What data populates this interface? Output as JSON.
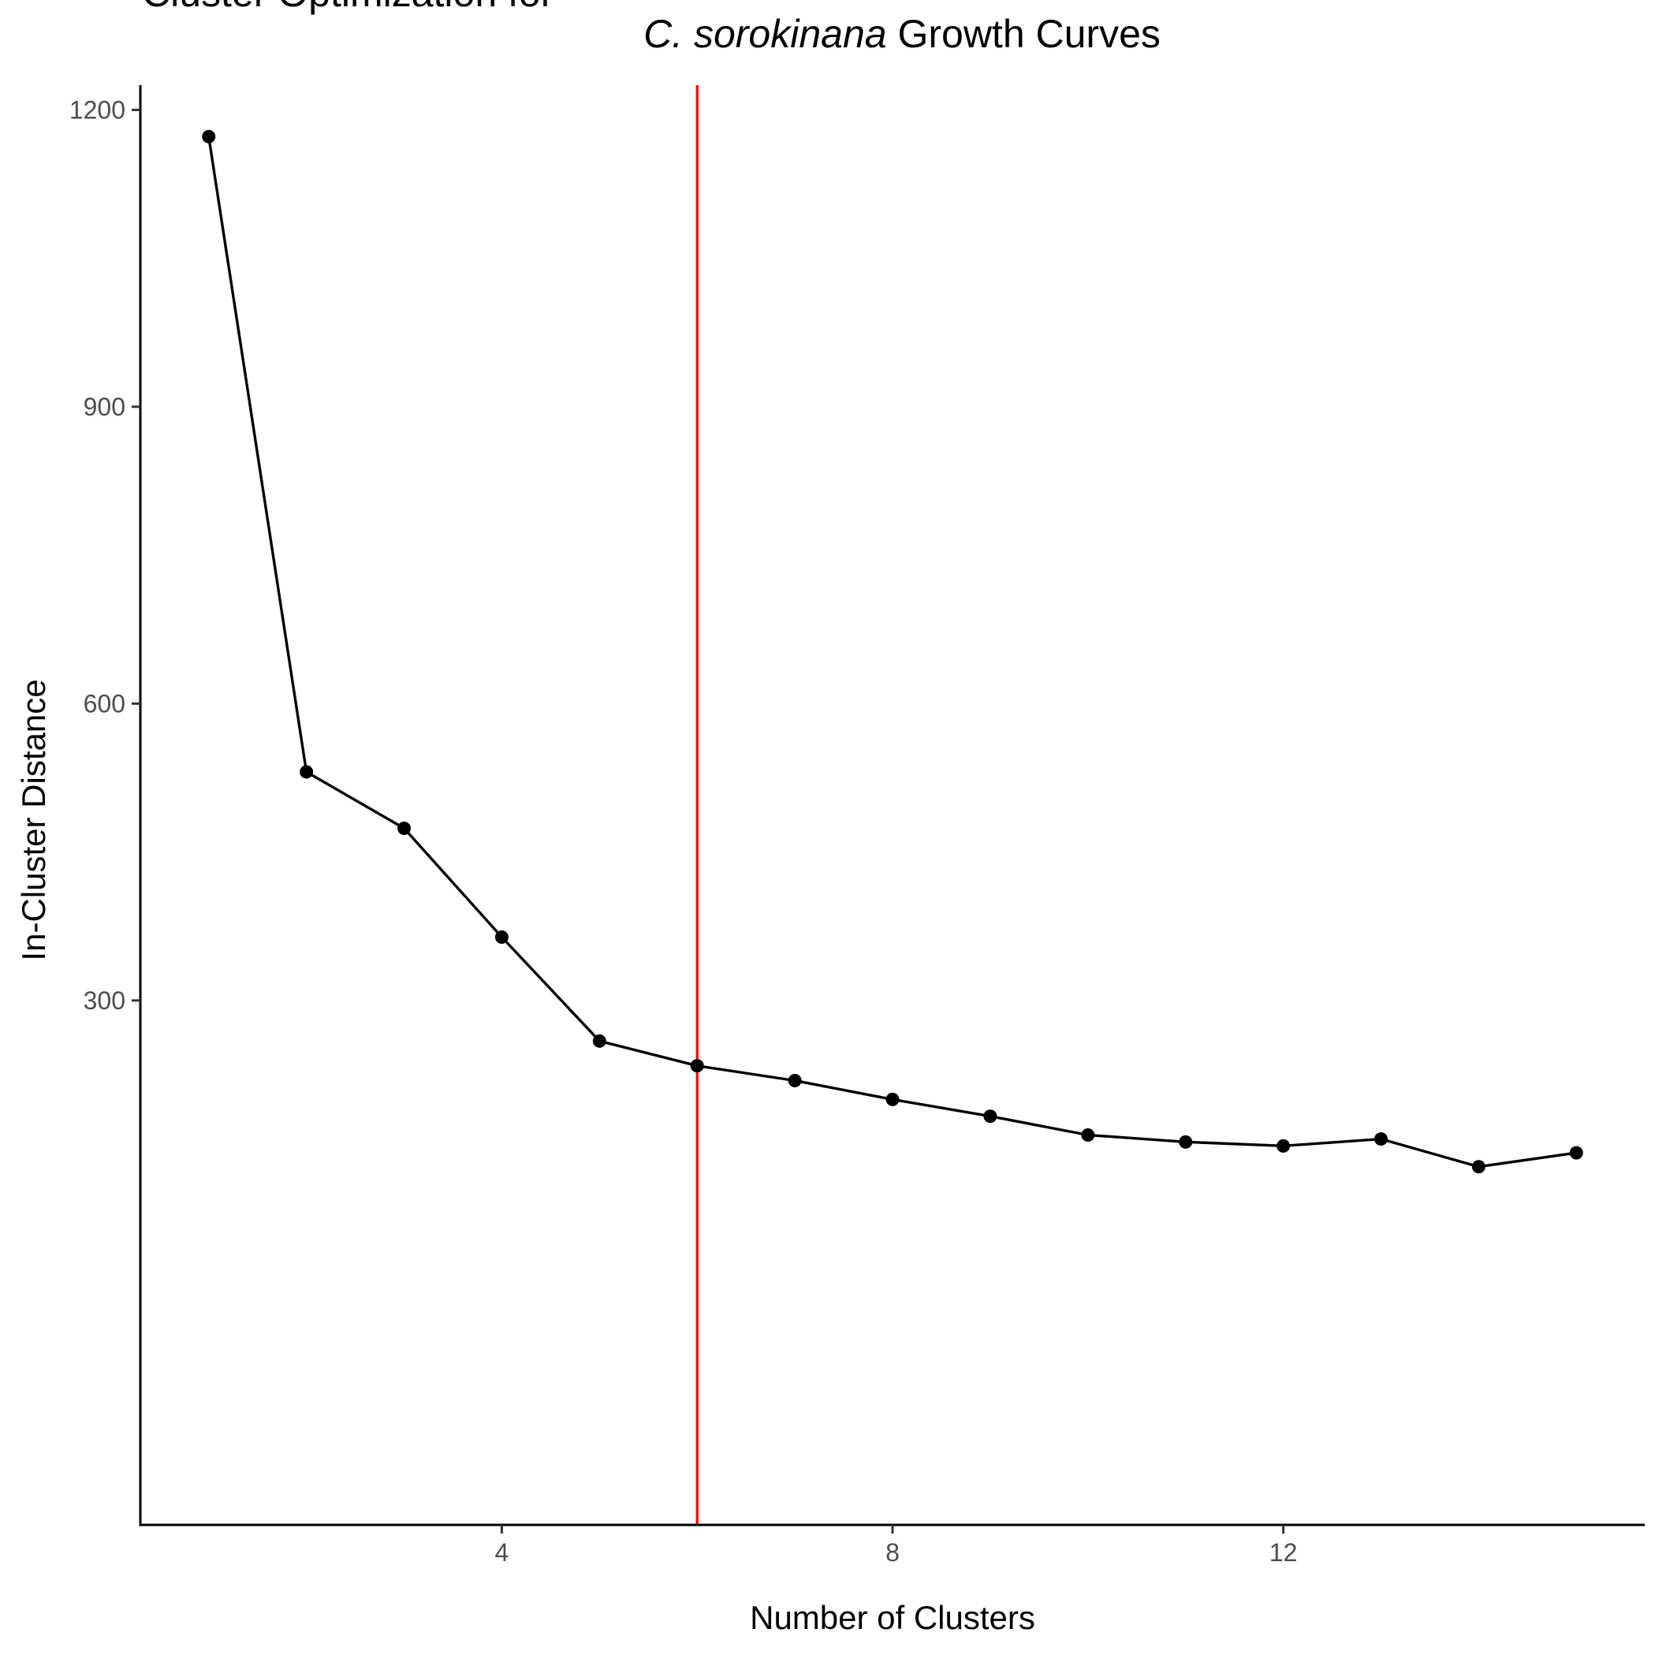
{
  "chart_data": {
    "type": "line",
    "title_line1": "Cluster Optimization for",
    "title_line2_italic": "C. sorokinana",
    "title_line2_rest": " Growth Curves",
    "xlabel": "Number of Clusters",
    "ylabel": "In-Cluster Distance",
    "xlim": [
      0.3,
      15.7
    ],
    "ylim": [
      -230,
      1225
    ],
    "x_ticks": [
      4,
      8,
      12
    ],
    "y_ticks": [
      300,
      600,
      900,
      1200
    ],
    "grid": false,
    "reference_line": {
      "x": 6,
      "color": "#ff0000"
    },
    "series": [
      {
        "color": "#000000",
        "points": [
          {
            "x": 1,
            "y": 1173
          },
          {
            "x": 2,
            "y": 531
          },
          {
            "x": 3,
            "y": 474
          },
          {
            "x": 4,
            "y": 364
          },
          {
            "x": 5,
            "y": 259
          },
          {
            "x": 6,
            "y": 234
          },
          {
            "x": 7,
            "y": 219
          },
          {
            "x": 8,
            "y": 200
          },
          {
            "x": 9,
            "y": 183
          },
          {
            "x": 10,
            "y": 164
          },
          {
            "x": 11,
            "y": 157
          },
          {
            "x": 12,
            "y": 153
          },
          {
            "x": 13,
            "y": 160
          },
          {
            "x": 14,
            "y": 132
          },
          {
            "x": 15,
            "y": 146
          }
        ]
      }
    ]
  }
}
